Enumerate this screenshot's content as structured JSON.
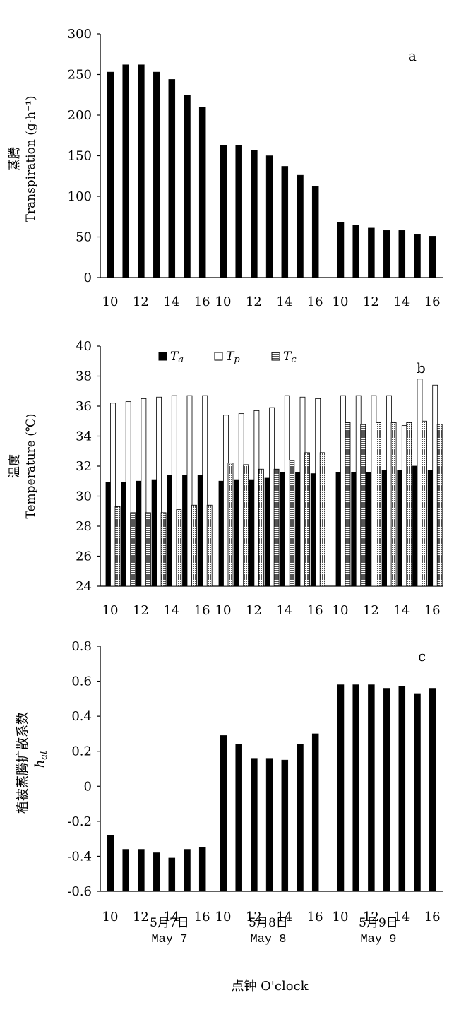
{
  "footer": {
    "dates": [
      {
        "zh": "5月7日",
        "en": "May 7"
      },
      {
        "zh": "5月8日",
        "en": "May 8"
      },
      {
        "zh": "5月9日",
        "en": "May 9"
      }
    ],
    "xlabel": "点钟 O'clock"
  },
  "chart_data": [
    {
      "type": "bar",
      "panel_label": "a",
      "ylabel_zh": "蒸腾",
      "ylabel": "Transpiration (g·h⁻¹)",
      "ylim": [
        0,
        300
      ],
      "yticks": [
        0,
        50,
        100,
        150,
        200,
        250,
        300
      ],
      "tick_labels": [
        "10",
        "12",
        "14",
        "16"
      ],
      "groups": [
        "May 7",
        "May 8",
        "May 9"
      ],
      "hours": [
        10,
        11,
        12,
        13,
        14,
        15,
        16
      ],
      "series": [
        {
          "values": [
            [
              253,
              262,
              262,
              253,
              244,
              225,
              210
            ],
            [
              163,
              163,
              157,
              150,
              137,
              126,
              112
            ],
            [
              68,
              65,
              61,
              58,
              58,
              53,
              51
            ]
          ]
        }
      ],
      "colors": [
        "#000000"
      ]
    },
    {
      "type": "bar",
      "panel_label": "b",
      "ylabel_zh": "温度",
      "ylabel": "Temperature (℃)",
      "ylim": [
        24,
        40
      ],
      "yticks": [
        24,
        26,
        28,
        30,
        32,
        34,
        36,
        38,
        40
      ],
      "tick_labels": [
        "10",
        "12",
        "14",
        "16"
      ],
      "groups": [
        "May 7",
        "May 8",
        "May 9"
      ],
      "hours": [
        10,
        11,
        12,
        13,
        14,
        15,
        16
      ],
      "legend": [
        "Ta",
        "Tp",
        "Tc"
      ],
      "series": [
        {
          "name": "Ta",
          "values": [
            [
              30.9,
              30.9,
              31.0,
              31.1,
              31.4,
              31.4,
              31.4
            ],
            [
              31.0,
              31.1,
              31.1,
              31.2,
              31.6,
              31.6,
              31.5
            ],
            [
              31.6,
              31.6,
              31.6,
              31.7,
              31.7,
              32.0,
              31.7
            ]
          ]
        },
        {
          "name": "Tp",
          "values": [
            [
              36.2,
              36.3,
              36.5,
              36.6,
              36.7,
              36.7,
              36.7
            ],
            [
              35.4,
              35.5,
              35.7,
              35.9,
              36.7,
              36.6,
              36.5
            ],
            [
              36.7,
              36.7,
              36.7,
              36.7,
              34.7,
              37.8,
              37.4
            ]
          ]
        },
        {
          "name": "Tc",
          "values": [
            [
              29.3,
              28.9,
              28.9,
              28.9,
              29.1,
              29.4,
              29.4
            ],
            [
              32.2,
              32.1,
              31.8,
              31.8,
              32.4,
              32.9,
              32.9
            ],
            [
              34.9,
              34.8,
              34.9,
              34.9,
              34.9,
              35.0,
              34.8
            ]
          ]
        }
      ],
      "colors": [
        "#000000",
        "#ffffff",
        "#9a9a9a"
      ]
    },
    {
      "type": "bar",
      "panel_label": "c",
      "ylabel_zh": "植被蒸腾扩散系数",
      "ylabel": "hat",
      "ylim": [
        -0.6,
        0.8
      ],
      "yticks": [
        -0.6,
        -0.4,
        -0.2,
        0,
        0.2,
        0.4,
        0.6,
        0.8
      ],
      "tick_labels": [
        "10",
        "12",
        "14",
        "16"
      ],
      "groups": [
        "May 7",
        "May 8",
        "May 9"
      ],
      "hours": [
        10,
        11,
        12,
        13,
        14,
        15,
        16
      ],
      "series": [
        {
          "values": [
            [
              -0.28,
              -0.36,
              -0.36,
              -0.38,
              -0.41,
              -0.36,
              -0.35
            ],
            [
              0.29,
              0.24,
              0.16,
              0.16,
              0.15,
              0.24,
              0.3
            ],
            [
              0.58,
              0.58,
              0.58,
              0.56,
              0.57,
              0.53,
              0.56
            ]
          ]
        }
      ],
      "colors": [
        "#000000"
      ]
    }
  ]
}
